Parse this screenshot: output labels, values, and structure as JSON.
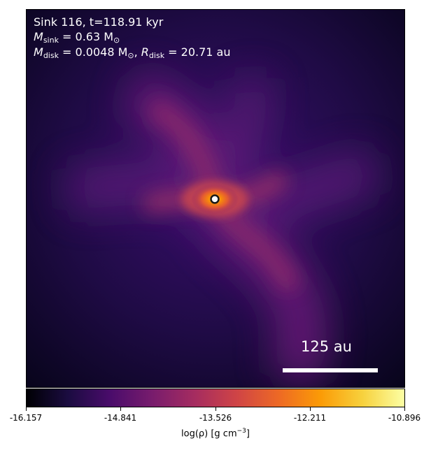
{
  "panel": {
    "sink_line": "Sink 116, t=118.91 kyr",
    "sink_mass_symbol": "M",
    "sink_mass_sub": "sink",
    "sink_mass_value": " = 0.63 M",
    "sink_mass_unit_sub": "⊙",
    "disk_mass_symbol": "M",
    "disk_mass_sub": "disk",
    "disk_mass_value": " = 0.0048 M",
    "disk_mass_unit_sub": "⊙",
    "disk_radius_symbol": "R",
    "disk_radius_sub": "disk",
    "disk_radius_value": " = 20.71 au",
    "separator": ", "
  },
  "scalebar": {
    "label": "125 au"
  },
  "colorbar": {
    "ticks": [
      "-16.157",
      "-14.841",
      "-13.526",
      "-12.211",
      "-10.896"
    ],
    "label_prefix": "log(ρ) [g cm",
    "label_exp": "−3",
    "label_suffix": "]",
    "colormap": "inferno"
  }
}
